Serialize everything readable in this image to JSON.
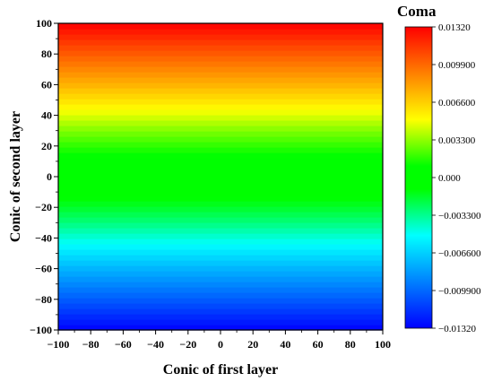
{
  "chart_data": {
    "type": "heatmap",
    "title": "",
    "xlabel": "Conic of first layer",
    "ylabel": "Conic of second layer",
    "xlim": [
      -100,
      100
    ],
    "ylim": [
      -100,
      100
    ],
    "x_ticks": [
      "−100",
      "−80",
      "−60",
      "−40",
      "−20",
      "0",
      "20",
      "40",
      "60",
      "80",
      "100"
    ],
    "y_ticks": [
      "−100",
      "−80",
      "−60",
      "−40",
      "−20",
      "0",
      "20",
      "40",
      "60",
      "80",
      "100"
    ],
    "x_tick_values": [
      -100,
      -80,
      -60,
      -40,
      -20,
      0,
      20,
      40,
      60,
      80,
      100
    ],
    "y_tick_values": [
      -100,
      -80,
      -60,
      -40,
      -20,
      0,
      20,
      40,
      60,
      80,
      100
    ],
    "colorbar": {
      "title": "Coma",
      "range": [
        -0.0132,
        0.0132
      ],
      "tick_labels": [
        "0.01320",
        "0.009900",
        "0.006600",
        "0.003300",
        "0.000",
        "−0.003300",
        "−0.006600",
        "−0.009900",
        "−0.01320"
      ],
      "tick_values": [
        0.0132,
        0.0099,
        0.0066,
        0.0033,
        0.0,
        -0.0033,
        -0.0066,
        -0.0099,
        -0.0132
      ],
      "colors": [
        "#0000ff",
        "#0040ff",
        "#0080ff",
        "#00c0ff",
        "#00ffff",
        "#00ff80",
        "#00ff00",
        "#00ff00",
        "#80ff00",
        "#ffff00",
        "#ffc000",
        "#ff8000",
        "#ff4000",
        "#ff0000"
      ]
    },
    "field": {
      "description_of_values": "coma depends on second-layer conic (y) only",
      "y_samples": [
        -100,
        -90,
        -80,
        -70,
        -60,
        -50,
        -40,
        -30,
        -20,
        -10,
        0,
        10,
        20,
        30,
        40,
        50,
        60,
        70,
        80,
        90,
        100
      ],
      "coma_values": [
        -0.0132,
        -0.0117,
        -0.0103,
        -0.0089,
        -0.0075,
        -0.006,
        -0.0045,
        -0.003,
        -0.0017,
        -0.0006,
        0.0,
        0.0006,
        0.0017,
        0.003,
        0.0045,
        0.006,
        0.0075,
        0.0089,
        0.0103,
        0.0117,
        0.0132
      ]
    },
    "grid": false,
    "legend": "right"
  }
}
